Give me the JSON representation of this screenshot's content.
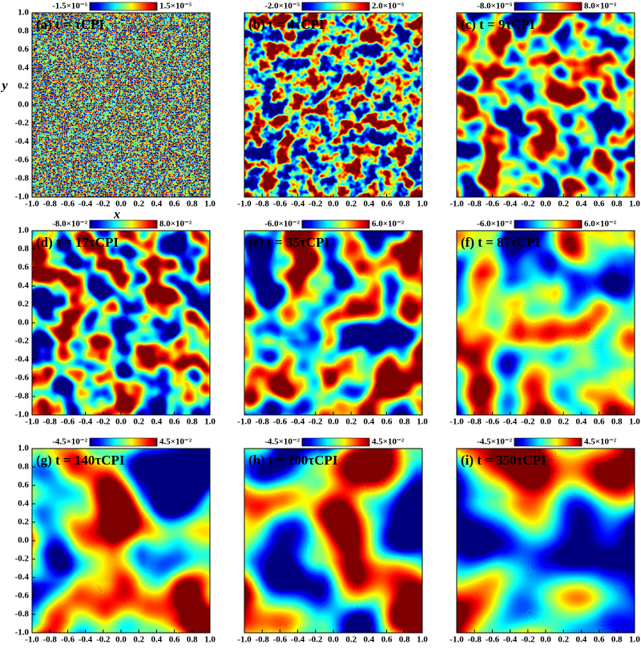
{
  "chart_data": [
    {
      "type": "heatmap",
      "title": "(a) t = τCPI",
      "xlabel": "x",
      "ylabel": "y",
      "xlim": [
        -1,
        1
      ],
      "ylim": [
        -1,
        1
      ],
      "xticks": [
        {
          "value": -1,
          "label": "-1.0"
        },
        -0.8,
        -0.6,
        -0.4,
        -0.2,
        {
          "value": 0,
          "label": "0.0"
        },
        0.2,
        0.4,
        0.6,
        0.8,
        {
          "value": 1,
          "label": "1.0"
        }
      ],
      "yticks": [
        {
          "value": -1,
          "label": "-1.0"
        },
        -0.8,
        -0.6,
        -0.4,
        -0.2,
        {
          "value": 0,
          "label": "0.0"
        },
        0.2,
        0.4,
        0.6,
        0.8,
        {
          "value": 1,
          "label": "1.0"
        }
      ],
      "colorbar_ticks": [
        {
          "value": -1.5e-05,
          "label": "-1.5×10⁻⁵"
        },
        {
          "value": 1.5e-05,
          "label": "1.5×10⁻⁵"
        }
      ]
    },
    {
      "type": "heatmap",
      "title": "(b) t = 4τCPI",
      "xlim": [
        -1,
        1
      ],
      "ylim": [
        -1,
        1
      ],
      "xticks": [
        {
          "value": -1,
          "label": "-1.0"
        },
        -0.8,
        -0.6,
        -0.4,
        -0.2,
        {
          "value": 0,
          "label": "0.0"
        },
        0.2,
        0.4,
        0.6,
        0.8,
        {
          "value": 1,
          "label": "1.0"
        }
      ],
      "colorbar_ticks": [
        {
          "value": -2e-05,
          "label": "-2.0×10⁻⁵"
        },
        {
          "value": 2e-05,
          "label": "2.0×10⁻⁵"
        }
      ]
    },
    {
      "type": "heatmap",
      "title": "(c) t = 9τCPI",
      "xlim": [
        -1,
        1
      ],
      "ylim": [
        -1,
        1
      ],
      "xticks": [
        {
          "value": -1,
          "label": "-1.0"
        },
        -0.8,
        -0.6,
        -0.4,
        -0.2,
        {
          "value": 0,
          "label": "0.0"
        },
        0.2,
        0.4,
        0.6,
        0.8,
        {
          "value": 1,
          "label": "1.0"
        }
      ],
      "colorbar_ticks": [
        {
          "value": -0.008,
          "label": "-8.0×10⁻³"
        },
        {
          "value": 0.008,
          "label": "8.0×10⁻³"
        }
      ]
    },
    {
      "type": "heatmap",
      "title": "(d) t = 17τCPI",
      "xlim": [
        -1,
        1
      ],
      "ylim": [
        -1,
        1
      ],
      "xticks": [
        {
          "value": -1,
          "label": "-1.0"
        },
        -0.8,
        -0.6,
        -0.4,
        -0.2,
        {
          "value": 0,
          "label": "0.0"
        },
        0.2,
        0.4,
        0.6,
        0.8,
        {
          "value": 1,
          "label": "1.0"
        }
      ],
      "yticks": [
        {
          "value": -1,
          "label": "-1.0"
        },
        -0.8,
        -0.6,
        -0.4,
        -0.2,
        {
          "value": 0,
          "label": "0.0"
        },
        0.2,
        0.4,
        0.6,
        0.8,
        {
          "value": 1,
          "label": "1.0"
        }
      ],
      "colorbar_ticks": [
        {
          "value": -0.08,
          "label": "-8.0×10⁻²"
        },
        {
          "value": 0.08,
          "label": "8.0×10⁻²"
        }
      ]
    },
    {
      "type": "heatmap",
      "title": "(e) t = 35τCPI",
      "xlim": [
        -1,
        1
      ],
      "ylim": [
        -1,
        1
      ],
      "xticks": [
        {
          "value": -1,
          "label": "-1.0"
        },
        -0.8,
        -0.6,
        -0.4,
        -0.2,
        {
          "value": 0,
          "label": "0.0"
        },
        0.2,
        0.4,
        0.6,
        0.8,
        {
          "value": 1,
          "label": "1.0"
        }
      ],
      "colorbar_ticks": [
        {
          "value": -0.06,
          "label": "-6.0×10⁻²"
        },
        {
          "value": 0.06,
          "label": "6.0×10⁻²"
        }
      ]
    },
    {
      "type": "heatmap",
      "title": "(f) t = 87τCPI",
      "xlim": [
        -1,
        1
      ],
      "ylim": [
        -1,
        1
      ],
      "xticks": [
        {
          "value": -1,
          "label": "-1.0"
        },
        -0.8,
        -0.6,
        -0.4,
        -0.2,
        {
          "value": 0,
          "label": "0.0"
        },
        0.2,
        0.4,
        0.6,
        0.8,
        {
          "value": 1,
          "label": "1.0"
        }
      ],
      "colorbar_ticks": [
        {
          "value": -0.06,
          "label": "-6.0×10⁻²"
        },
        {
          "value": 0.06,
          "label": "6.0×10⁻²"
        }
      ]
    },
    {
      "type": "heatmap",
      "title": "(g) t = 140τCPI",
      "xlim": [
        -1,
        1
      ],
      "ylim": [
        -1,
        1
      ],
      "xticks": [
        {
          "value": -1,
          "label": "-1.0"
        },
        -0.8,
        -0.6,
        -0.4,
        -0.2,
        {
          "value": 0,
          "label": "0.0"
        },
        0.2,
        0.4,
        0.6,
        0.8,
        {
          "value": 1,
          "label": "1.0"
        }
      ],
      "yticks": [
        {
          "value": -1,
          "label": "-1.0"
        },
        -0.8,
        -0.6,
        -0.4,
        -0.2,
        {
          "value": 0,
          "label": "0.0"
        },
        0.2,
        0.4,
        0.6,
        0.8,
        {
          "value": 1,
          "label": "1.0"
        }
      ],
      "colorbar_ticks": [
        {
          "value": -0.045,
          "label": "-4.5×10⁻²"
        },
        {
          "value": 0.045,
          "label": "4.5×10⁻²"
        }
      ]
    },
    {
      "type": "heatmap",
      "title": "(h) t = 200τCPI",
      "xlim": [
        -1,
        1
      ],
      "ylim": [
        -1,
        1
      ],
      "xticks": [
        {
          "value": -1,
          "label": "-1.0"
        },
        -0.8,
        -0.6,
        -0.4,
        -0.2,
        {
          "value": 0,
          "label": "0.0"
        },
        0.2,
        0.4,
        0.6,
        0.8,
        {
          "value": 1,
          "label": "1.0"
        }
      ],
      "colorbar_ticks": [
        {
          "value": -0.045,
          "label": "-4.5×10⁻²"
        },
        {
          "value": 0.045,
          "label": "4.5×10⁻²"
        }
      ]
    },
    {
      "type": "heatmap",
      "title": "(i) t = 350τCPI",
      "xlim": [
        -1,
        1
      ],
      "ylim": [
        -1,
        1
      ],
      "xticks": [
        {
          "value": -1,
          "label": "-1.0"
        },
        -0.8,
        -0.6,
        -0.4,
        -0.2,
        {
          "value": 0,
          "label": "0.0"
        },
        0.2,
        0.4,
        0.6,
        0.8,
        {
          "value": 1,
          "label": "1.0"
        }
      ],
      "colorbar_ticks": [
        {
          "value": -0.045,
          "label": "-4.5×10⁻²"
        },
        {
          "value": 0.045,
          "label": "4.5×10⁻²"
        }
      ]
    }
  ]
}
